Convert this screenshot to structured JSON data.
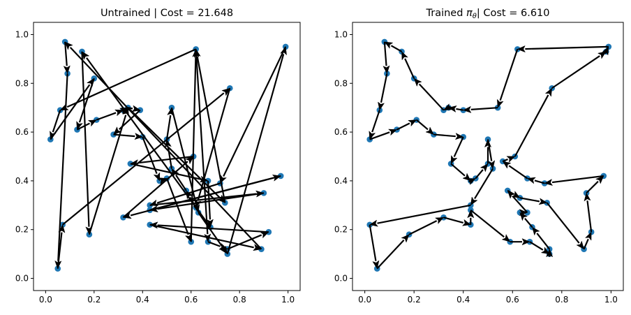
{
  "chart_data": [
    {
      "type": "scatter",
      "title": "Untrained | Cost = 21.648",
      "xlabel": "",
      "ylabel": "",
      "xlim": [
        -0.05,
        1.05
      ],
      "ylim": [
        -0.05,
        1.05
      ],
      "xticks": [
        "0.0",
        "0.2",
        "0.4",
        "0.6",
        "0.8",
        "1.0"
      ],
      "yticks": [
        "0.0",
        "0.2",
        "0.4",
        "0.6",
        "0.8",
        "1.0"
      ],
      "grid": false,
      "point_color": "#1f77b4",
      "edge_color": "#000000",
      "edges_drawn_as_arrows": true,
      "tour": [
        [
          0.06,
          0.69
        ],
        [
          0.02,
          0.57
        ],
        [
          0.2,
          0.82
        ],
        [
          0.13,
          0.61
        ],
        [
          0.21,
          0.65
        ],
        [
          0.32,
          0.69
        ],
        [
          0.34,
          0.7
        ],
        [
          0.39,
          0.69
        ],
        [
          0.28,
          0.59
        ],
        [
          0.4,
          0.58
        ],
        [
          0.47,
          0.4
        ],
        [
          0.5,
          0.41
        ],
        [
          0.6,
          0.15
        ],
        [
          0.62,
          0.94
        ],
        [
          0.67,
          0.15
        ],
        [
          0.75,
          0.12
        ],
        [
          0.92,
          0.19
        ],
        [
          0.43,
          0.22
        ],
        [
          0.89,
          0.12
        ],
        [
          0.08,
          0.97
        ],
        [
          0.09,
          0.84
        ],
        [
          0.05,
          0.04
        ],
        [
          0.07,
          0.22
        ],
        [
          0.76,
          0.78
        ],
        [
          0.62,
          0.29
        ],
        [
          0.58,
          0.36
        ],
        [
          0.52,
          0.45
        ],
        [
          0.5,
          0.57
        ],
        [
          0.52,
          0.7
        ],
        [
          0.63,
          0.27
        ],
        [
          0.75,
          0.1
        ],
        [
          0.99,
          0.95
        ],
        [
          0.72,
          0.39
        ],
        [
          0.43,
          0.3
        ],
        [
          0.9,
          0.35
        ],
        [
          0.43,
          0.28
        ],
        [
          0.97,
          0.42
        ],
        [
          0.32,
          0.25
        ],
        [
          0.61,
          0.5
        ],
        [
          0.35,
          0.47
        ],
        [
          0.67,
          0.4
        ],
        [
          0.68,
          0.21
        ],
        [
          0.15,
          0.93
        ],
        [
          0.18,
          0.18
        ],
        [
          0.34,
          0.7
        ],
        [
          0.74,
          0.31
        ],
        [
          0.62,
          0.94
        ],
        [
          0.06,
          0.69
        ]
      ]
    },
    {
      "type": "scatter",
      "title": "Trained πθ| Cost = 6.610",
      "xlabel": "",
      "ylabel": "",
      "xlim": [
        -0.05,
        1.05
      ],
      "ylim": [
        -0.05,
        1.05
      ],
      "xticks": [
        "0.0",
        "0.2",
        "0.4",
        "0.6",
        "0.8",
        "1.0"
      ],
      "yticks": [
        "0.0",
        "0.2",
        "0.4",
        "0.6",
        "0.8",
        "1.0"
      ],
      "grid": false,
      "point_color": "#1f77b4",
      "edge_color": "#000000",
      "edges_drawn_as_arrows": true,
      "tour": [
        [
          0.99,
          0.95
        ],
        [
          0.62,
          0.94
        ],
        [
          0.54,
          0.7
        ],
        [
          0.4,
          0.69
        ],
        [
          0.34,
          0.7
        ],
        [
          0.32,
          0.69
        ],
        [
          0.2,
          0.82
        ],
        [
          0.15,
          0.93
        ],
        [
          0.08,
          0.97
        ],
        [
          0.09,
          0.84
        ],
        [
          0.06,
          0.69
        ],
        [
          0.02,
          0.57
        ],
        [
          0.13,
          0.61
        ],
        [
          0.21,
          0.65
        ],
        [
          0.28,
          0.59
        ],
        [
          0.4,
          0.58
        ],
        [
          0.35,
          0.47
        ],
        [
          0.43,
          0.4
        ],
        [
          0.45,
          0.41
        ],
        [
          0.5,
          0.47
        ],
        [
          0.5,
          0.57
        ],
        [
          0.52,
          0.45
        ],
        [
          0.43,
          0.3
        ],
        [
          0.02,
          0.22
        ],
        [
          0.05,
          0.04
        ],
        [
          0.18,
          0.18
        ],
        [
          0.32,
          0.25
        ],
        [
          0.43,
          0.22
        ],
        [
          0.43,
          0.28
        ],
        [
          0.59,
          0.15
        ],
        [
          0.67,
          0.15
        ],
        [
          0.75,
          0.1
        ],
        [
          0.75,
          0.12
        ],
        [
          0.68,
          0.21
        ],
        [
          0.63,
          0.27
        ],
        [
          0.66,
          0.27
        ],
        [
          0.58,
          0.36
        ],
        [
          0.63,
          0.33
        ],
        [
          0.74,
          0.31
        ],
        [
          0.89,
          0.12
        ],
        [
          0.92,
          0.19
        ],
        [
          0.9,
          0.35
        ],
        [
          0.97,
          0.42
        ],
        [
          0.73,
          0.39
        ],
        [
          0.66,
          0.41
        ],
        [
          0.56,
          0.48
        ],
        [
          0.61,
          0.5
        ],
        [
          0.76,
          0.78
        ],
        [
          0.98,
          0.93
        ],
        [
          0.99,
          0.95
        ]
      ]
    }
  ]
}
